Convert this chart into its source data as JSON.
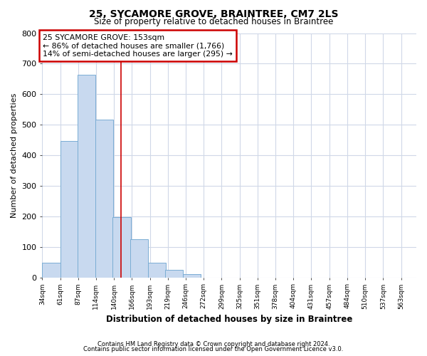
{
  "title_line1": "25, SYCAMORE GROVE, BRAINTREE, CM7 2LS",
  "title_line2": "Size of property relative to detached houses in Braintree",
  "xlabel": "Distribution of detached houses by size in Braintree",
  "ylabel": "Number of detached properties",
  "footnote_line1": "Contains HM Land Registry data © Crown copyright and database right 2024.",
  "footnote_line2": "Contains public sector information licensed under the Open Government Licence v3.0.",
  "bar_left_edges": [
    34,
    61,
    87,
    114,
    140,
    166,
    193,
    219,
    246,
    272,
    299,
    325
  ],
  "bar_heights": [
    47,
    447,
    663,
    516,
    197,
    125,
    47,
    24,
    10,
    0,
    0,
    0
  ],
  "bin_width": 27,
  "bar_color": "#c8d9ef",
  "bar_edge_color": "#7aadd4",
  "grid_color": "#d0d8e8",
  "background_color": "#ffffff",
  "vline_x": 153,
  "vline_color": "#cc0000",
  "annotation_box_text_line1": "25 SYCAMORE GROVE: 153sqm",
  "annotation_box_text_line2": "← 86% of detached houses are smaller (1,766)",
  "annotation_box_text_line3": "14% of semi-detached houses are larger (295) →",
  "annotation_box_color": "#ffffff",
  "annotation_box_edge_color": "#cc0000",
  "x_tick_labels": [
    "34sqm",
    "61sqm",
    "87sqm",
    "114sqm",
    "140sqm",
    "166sqm",
    "193sqm",
    "219sqm",
    "246sqm",
    "272sqm",
    "299sqm",
    "325sqm",
    "351sqm",
    "378sqm",
    "404sqm",
    "431sqm",
    "457sqm",
    "484sqm",
    "510sqm",
    "537sqm",
    "563sqm"
  ],
  "xlim_left": 34,
  "xlim_right": 597,
  "ylim": [
    0,
    800
  ],
  "yticks": [
    0,
    100,
    200,
    300,
    400,
    500,
    600,
    700,
    800
  ]
}
